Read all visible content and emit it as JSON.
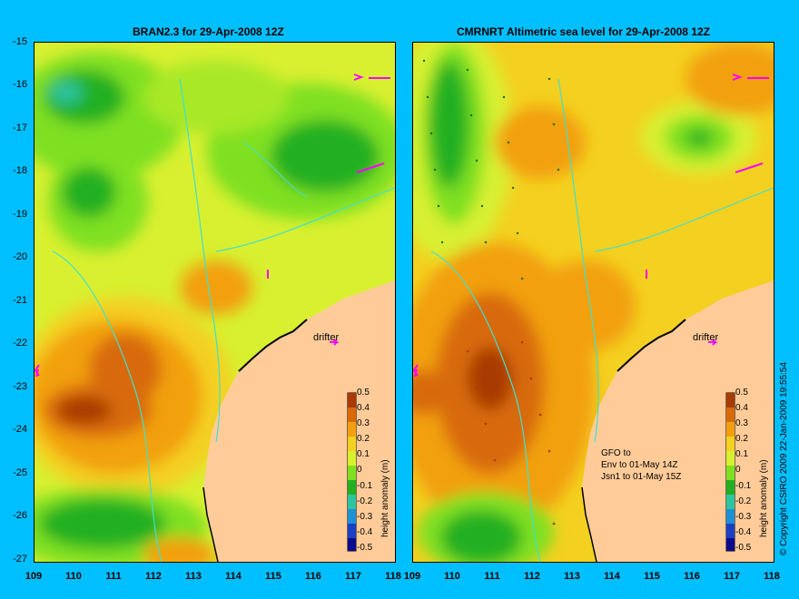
{
  "panels": [
    {
      "title": "BRAN2.3 for 29-Apr-2008 12Z"
    },
    {
      "title": "CMRNRT Altimetric sea level  for 29-Apr-2008 12Z"
    }
  ],
  "lat_ticks": [
    "-15",
    "-16",
    "-17",
    "-18",
    "-19",
    "-20",
    "-21",
    "-22",
    "-23",
    "-24",
    "-25",
    "-26",
    "-27"
  ],
  "lon_ticks": [
    "109",
    "110",
    "111",
    "112",
    "113",
    "114",
    "115",
    "116",
    "117",
    "118"
  ],
  "colorbar": {
    "label": "height anomaly (m)",
    "ticks": [
      "0.5",
      "0.4",
      "0.3",
      "0.2",
      "0.1",
      "0",
      "-0.1",
      "-0.2",
      "-0.3",
      "-0.4",
      "-0.5"
    ],
    "range": [
      -0.5,
      0.5
    ]
  },
  "drifter_label": "drifter",
  "satellite_note": [
    "GFO to",
    "Env to 01-May 14Z",
    "Jsn1 to 01-May 15Z"
  ],
  "copyright": "© Copyright CSIRO 2009    22-Jan-2009 19:55:54",
  "colors": {
    "background": "#00bfff",
    "land": "#ffcc99",
    "coastline": "#40e0d0",
    "drifter": "#ff00ff",
    "scale": [
      "#0a0a8c",
      "#1a3fc4",
      "#1f8fd6",
      "#2ec4a0",
      "#22b022",
      "#7fe020",
      "#d8f030",
      "#f4d020",
      "#f2a010",
      "#d86a08",
      "#a83a04"
    ]
  }
}
